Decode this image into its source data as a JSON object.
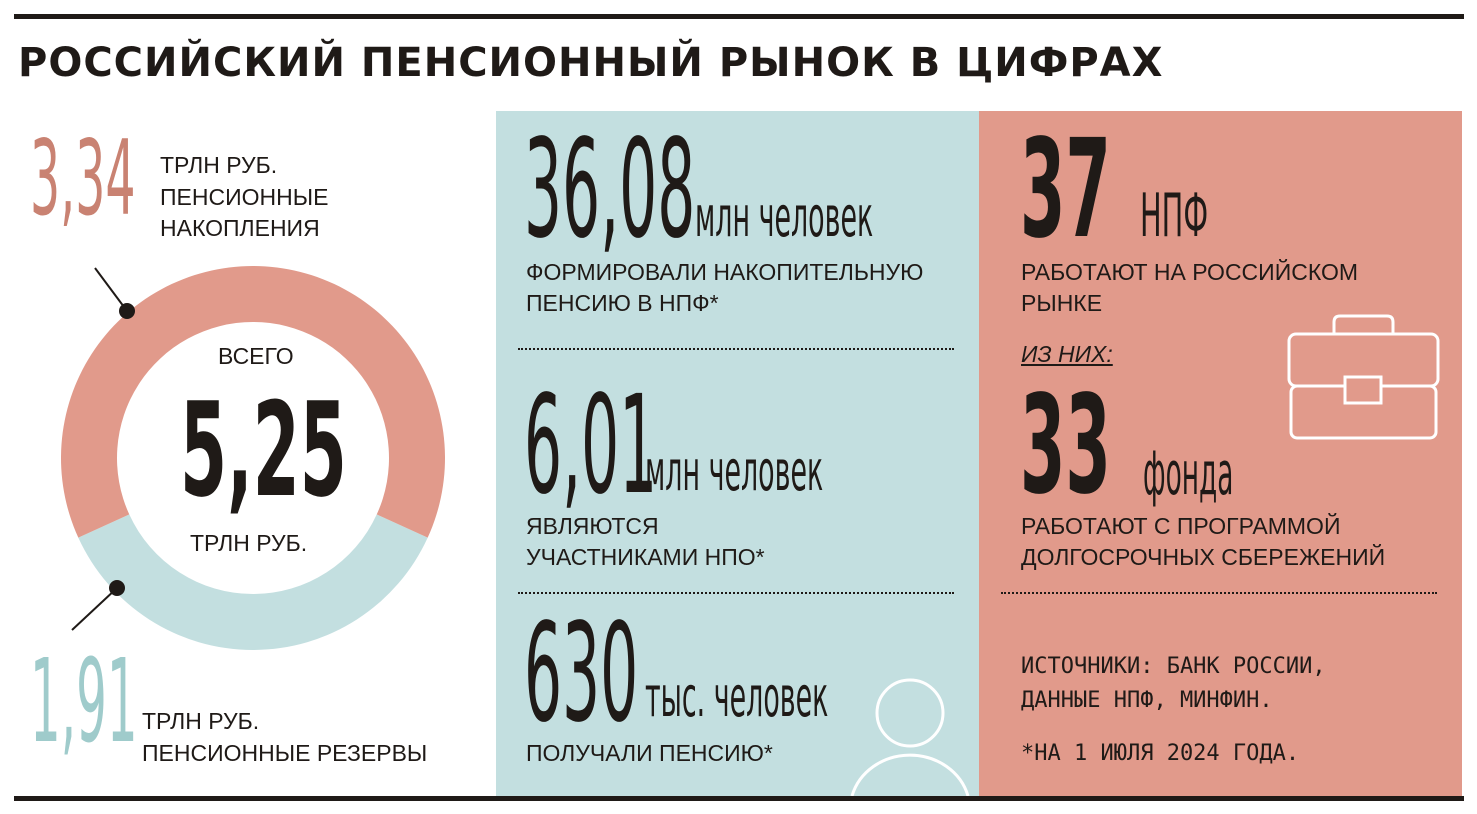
{
  "title": "РОССИЙСКИЙ ПЕНСИОННЫЙ РЫНОК В ЦИФРАХ",
  "colors": {
    "pink": "#e19a8b",
    "blue": "#c3dfe0",
    "pink_text": "#c98272",
    "blue_text": "#9fcbcb",
    "dark": "#1f1a17"
  },
  "icons": [
    "briefcase-icon",
    "person-icon"
  ],
  "chart_data": {
    "type": "pie",
    "variant": "donut",
    "center_label_top": "ВСЕГО",
    "center_value": "5,25",
    "center_unit": "ТРЛН РУБ.",
    "total": 5.25,
    "slices": [
      {
        "value": 3.34,
        "value_label": "3,34",
        "unit": "ТРЛН РУБ.",
        "label": "ПЕНСИОННЫЕ НАКОПЛЕНИЯ",
        "color": "#e19a8b"
      },
      {
        "value": 1.91,
        "value_label": "1,91",
        "unit": "ТРЛН РУБ.",
        "label": "ПЕНСИОННЫЕ РЕЗЕРВЫ",
        "color": "#c3dfe0"
      }
    ]
  },
  "stats_blue": [
    {
      "number": "36,08",
      "unit": "млн человек",
      "caption": [
        "ФОРМИРОВАЛИ НАКОПИТЕЛЬНУЮ",
        "ПЕНСИЮ В НПФ*"
      ]
    },
    {
      "number": "6,01",
      "unit": "млн человек",
      "caption": [
        "ЯВЛЯЮТСЯ",
        "УЧАСТНИКАМИ НПО*"
      ]
    },
    {
      "number": "630",
      "unit": "тыс. человек",
      "caption": [
        "ПОЛУЧАЛИ ПЕНСИЮ*"
      ]
    }
  ],
  "stats_pink": {
    "first": {
      "number": "37",
      "unit": "НПФ",
      "caption": [
        "РАБОТАЮТ НА РОССИЙСКОМ",
        "РЫНКЕ"
      ]
    },
    "of_them": "ИЗ НИХ:",
    "second": {
      "number": "33",
      "unit": "фонда",
      "caption": [
        "РАБОТАЮТ С ПРОГРАММОЙ",
        "ДОЛГОСРОЧНЫХ СБЕРЕЖЕНИЙ"
      ]
    }
  },
  "sources": [
    "ИСТОЧНИКИ: БАНК РОССИИ,",
    "ДАННЫЕ НПФ, МИНФИН."
  ],
  "footnote": "*НА 1 ИЮЛЯ 2024 ГОДА."
}
